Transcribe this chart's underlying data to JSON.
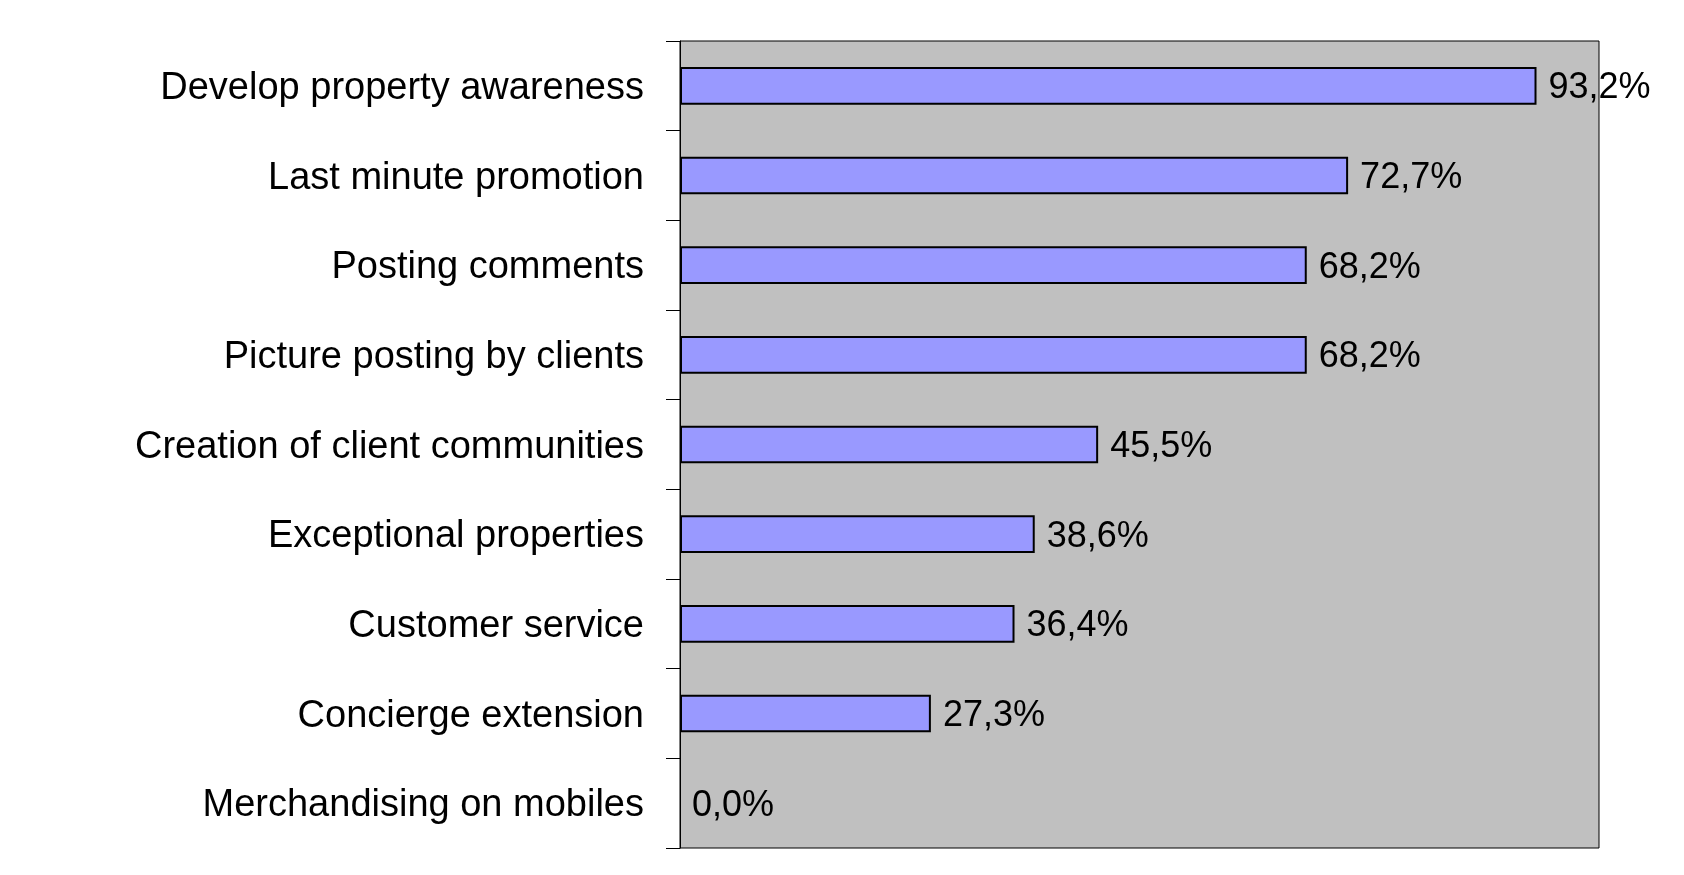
{
  "chart_data": {
    "type": "bar",
    "orientation": "horizontal",
    "categories": [
      "Develop property awareness",
      "Last minute promotion",
      "Posting comments",
      "Picture posting by clients",
      "Creation of client communities",
      "Exceptional properties",
      "Customer service",
      "Concierge extension",
      "Merchandising on mobiles"
    ],
    "values": [
      93.2,
      72.7,
      68.2,
      68.2,
      45.5,
      38.6,
      36.4,
      27.3,
      0.0
    ],
    "value_labels": [
      "93,2%",
      "72,7%",
      "68,2%",
      "68,2%",
      "45,5%",
      "38,6%",
      "36,4%",
      "27,3%",
      "0,0%"
    ],
    "color": "#9999ff",
    "xlim": [
      0,
      100
    ],
    "grid": false
  }
}
